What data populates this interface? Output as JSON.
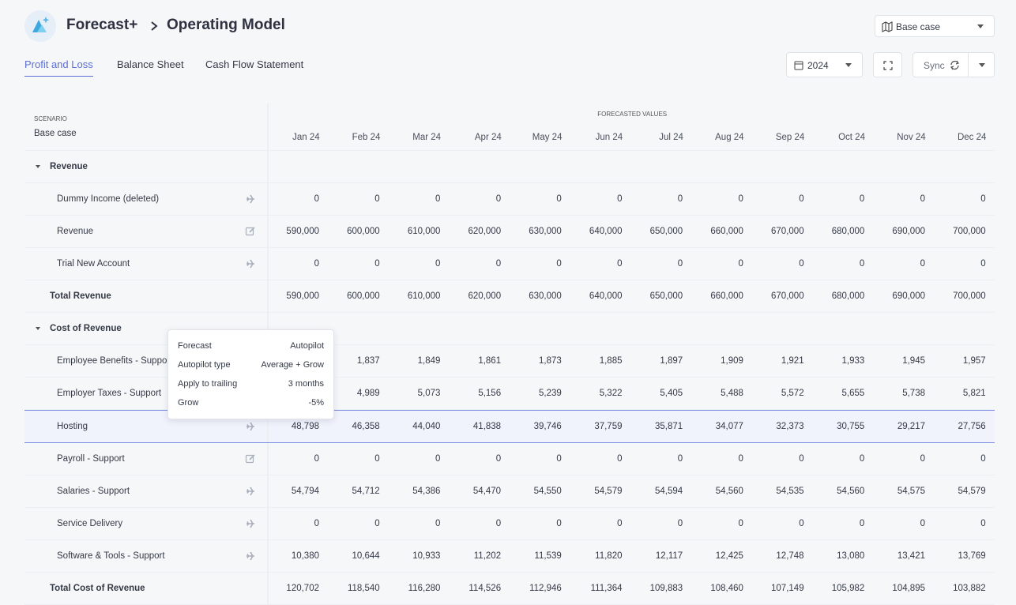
{
  "header": {
    "breadcrumb": [
      "Forecast+",
      "Operating Model"
    ],
    "scenario": "Base case"
  },
  "tabs": {
    "items": [
      "Profit and Loss",
      "Balance Sheet",
      "Cash Flow Statement"
    ],
    "active": 0
  },
  "controls": {
    "year": "2024",
    "sync": "Sync"
  },
  "table": {
    "scenario_label": "SCENARIO",
    "scenario": "Base case",
    "group_label": "FORECASTED VALUES",
    "months": [
      "Jan 24",
      "Feb 24",
      "Mar 24",
      "Apr 24",
      "May 24",
      "Jun 24",
      "Jul 24",
      "Aug 24",
      "Sep 24",
      "Oct 24",
      "Nov 24",
      "Dec 24"
    ],
    "rows": [
      {
        "label": "Revenue",
        "kind": "section"
      },
      {
        "label": "Dummy Income (deleted)",
        "kind": "item",
        "icon": "autopilot",
        "values": [
          "0",
          "0",
          "0",
          "0",
          "0",
          "0",
          "0",
          "0",
          "0",
          "0",
          "0",
          "0"
        ]
      },
      {
        "label": "Revenue",
        "kind": "item",
        "icon": "edit",
        "values": [
          "590,000",
          "600,000",
          "610,000",
          "620,000",
          "630,000",
          "640,000",
          "650,000",
          "660,000",
          "670,000",
          "680,000",
          "690,000",
          "700,000"
        ]
      },
      {
        "label": "Trial New Account",
        "kind": "item",
        "icon": "autopilot",
        "values": [
          "0",
          "0",
          "0",
          "0",
          "0",
          "0",
          "0",
          "0",
          "0",
          "0",
          "0",
          "0"
        ]
      },
      {
        "label": "Total Revenue",
        "kind": "total",
        "values": [
          "590,000",
          "600,000",
          "610,000",
          "620,000",
          "630,000",
          "640,000",
          "650,000",
          "660,000",
          "670,000",
          "680,000",
          "690,000",
          "700,000"
        ]
      },
      {
        "label": "Cost of Revenue",
        "kind": "section"
      },
      {
        "label": "Employee Benefits - Support",
        "kind": "item",
        "icon": "autopilot",
        "values": [
          null,
          "1,837",
          "1,849",
          "1,861",
          "1,873",
          "1,885",
          "1,897",
          "1,909",
          "1,921",
          "1,933",
          "1,945",
          "1,957"
        ]
      },
      {
        "label": "Employer Taxes - Support",
        "kind": "item",
        "icon": "autopilot",
        "values": [
          null,
          "4,989",
          "5,073",
          "5,156",
          "5,239",
          "5,322",
          "5,405",
          "5,488",
          "5,572",
          "5,655",
          "5,738",
          "5,821"
        ]
      },
      {
        "label": "Hosting",
        "kind": "item",
        "icon": "autopilot",
        "selected": true,
        "values": [
          "48,798",
          "46,358",
          "44,040",
          "41,838",
          "39,746",
          "37,759",
          "35,871",
          "34,077",
          "32,373",
          "30,755",
          "29,217",
          "27,756"
        ]
      },
      {
        "label": "Payroll - Support",
        "kind": "item",
        "icon": "edit",
        "values": [
          "0",
          "0",
          "0",
          "0",
          "0",
          "0",
          "0",
          "0",
          "0",
          "0",
          "0",
          "0"
        ]
      },
      {
        "label": "Salaries - Support",
        "kind": "item",
        "icon": "autopilot",
        "values": [
          "54,794",
          "54,712",
          "54,386",
          "54,470",
          "54,550",
          "54,579",
          "54,594",
          "54,560",
          "54,535",
          "54,560",
          "54,575",
          "54,579"
        ]
      },
      {
        "label": "Service Delivery",
        "kind": "item",
        "icon": "autopilot",
        "values": [
          "0",
          "0",
          "0",
          "0",
          "0",
          "0",
          "0",
          "0",
          "0",
          "0",
          "0",
          "0"
        ]
      },
      {
        "label": "Software & Tools - Support",
        "kind": "item",
        "icon": "autopilot",
        "values": [
          "10,380",
          "10,644",
          "10,933",
          "11,202",
          "11,539",
          "11,820",
          "12,117",
          "12,425",
          "12,748",
          "13,080",
          "13,421",
          "13,769"
        ]
      },
      {
        "label": "Total Cost of Revenue",
        "kind": "total",
        "values": [
          "120,702",
          "118,540",
          "116,280",
          "114,526",
          "112,946",
          "111,364",
          "109,883",
          "108,460",
          "107,149",
          "105,982",
          "104,895",
          "103,882"
        ]
      }
    ]
  },
  "tooltip": {
    "rows": [
      [
        "Forecast",
        "Autopilot"
      ],
      [
        "Autopilot type",
        "Average + Grow"
      ],
      [
        "Apply to trailing",
        "3 months"
      ],
      [
        "Grow",
        "-5%"
      ]
    ]
  }
}
